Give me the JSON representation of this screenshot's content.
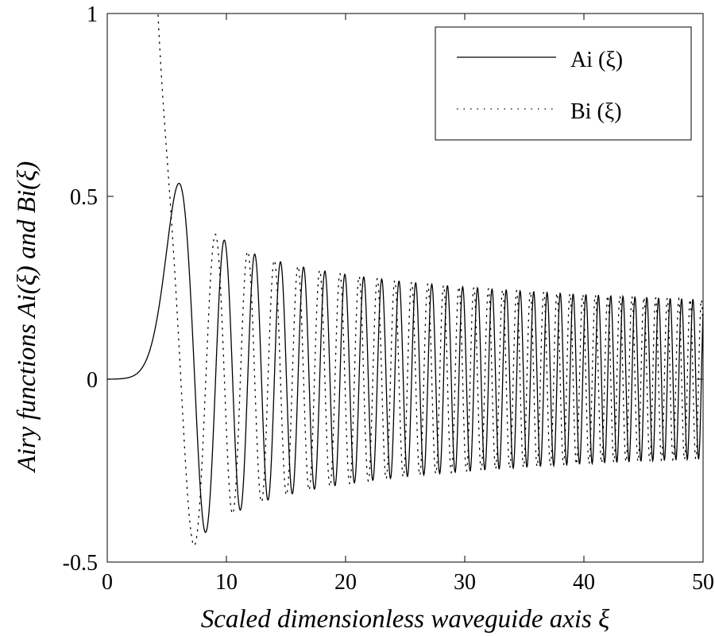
{
  "chart_data": {
    "type": "line",
    "title": "",
    "xlabel": "Scaled dimensionless waveguide axis ξ",
    "ylabel": "Airy functions Ai(ξ) and Bi(ξ)",
    "xlim": [
      0,
      50
    ],
    "ylim": [
      -0.5,
      1
    ],
    "xticks": [
      0,
      10,
      20,
      30,
      40,
      50
    ],
    "xtick_labels": [
      "0",
      "10",
      "20",
      "30",
      "40",
      "50"
    ],
    "yticks": [
      -0.5,
      0,
      0.5,
      1
    ],
    "ytick_labels": [
      "-0.5",
      "0",
      "0.5",
      "1"
    ],
    "grid": false,
    "legend_position": "top-right",
    "x_offset": 5,
    "series": [
      {
        "name": "Ai (ξ)",
        "function": "airy_ai",
        "style": "solid",
        "color": "#000000"
      },
      {
        "name": "Bi (ξ)",
        "function": "airy_bi",
        "style": "dotted",
        "color": "#000000"
      }
    ],
    "key_points": {
      "ai": [
        [
          0,
          0.098
        ],
        [
          5,
          0.536
        ],
        [
          10,
          -0.419
        ],
        [
          13.3,
          0.38
        ],
        [
          16.3,
          -0.354
        ],
        [
          19,
          0.344
        ],
        [
          21.4,
          -0.33
        ]
      ],
      "bi": [
        [
          1.2,
          1.0
        ],
        [
          7.5,
          -0.45
        ],
        [
          12,
          0.39
        ]
      ]
    }
  }
}
